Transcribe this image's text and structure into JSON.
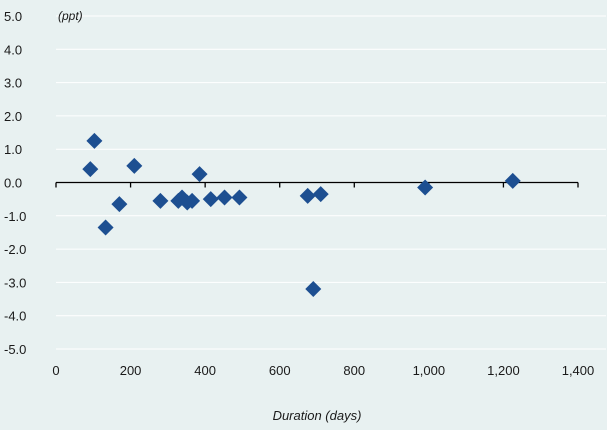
{
  "chart_data": {
    "type": "scatter",
    "title": "",
    "ylabel_unit": "(ppt)",
    "xlabel": "Duration (days)",
    "xlim": [
      0,
      1400
    ],
    "ylim": [
      -5.0,
      5.0
    ],
    "x_ticks": [
      0,
      200,
      400,
      600,
      800,
      1000,
      1200,
      1400
    ],
    "x_tick_labels": [
      "0",
      "200",
      "400",
      "600",
      "800",
      "1,000",
      "1,200",
      "1,400"
    ],
    "y_ticks": [
      5.0,
      4.0,
      3.0,
      2.0,
      1.0,
      0.0,
      -1.0,
      -2.0,
      -3.0,
      -4.0,
      -5.0
    ],
    "y_tick_labels": [
      "5.0",
      "4.0",
      "3.0",
      "2.0",
      "1.0",
      "0.0",
      "-1.0",
      "-2.0",
      "-3.0",
      "-4.0",
      "-5.0"
    ],
    "grid": "horizontal",
    "marker": "diamond",
    "colors": {
      "background": "#e8f1f1",
      "gridline": "#ffffff",
      "axis": "#000000",
      "marker": "#1d4f91"
    },
    "points": [
      {
        "x": 92,
        "y": 0.4
      },
      {
        "x": 103,
        "y": 1.25
      },
      {
        "x": 133,
        "y": -1.35
      },
      {
        "x": 170,
        "y": -0.65
      },
      {
        "x": 210,
        "y": 0.5
      },
      {
        "x": 280,
        "y": -0.55
      },
      {
        "x": 328,
        "y": -0.55
      },
      {
        "x": 338,
        "y": -0.45
      },
      {
        "x": 352,
        "y": -0.6
      },
      {
        "x": 365,
        "y": -0.55
      },
      {
        "x": 385,
        "y": 0.25
      },
      {
        "x": 415,
        "y": -0.5
      },
      {
        "x": 452,
        "y": -0.45
      },
      {
        "x": 492,
        "y": -0.45
      },
      {
        "x": 675,
        "y": -0.4
      },
      {
        "x": 690,
        "y": -3.2
      },
      {
        "x": 710,
        "y": -0.35
      },
      {
        "x": 990,
        "y": -0.15
      },
      {
        "x": 1225,
        "y": 0.05
      }
    ]
  }
}
